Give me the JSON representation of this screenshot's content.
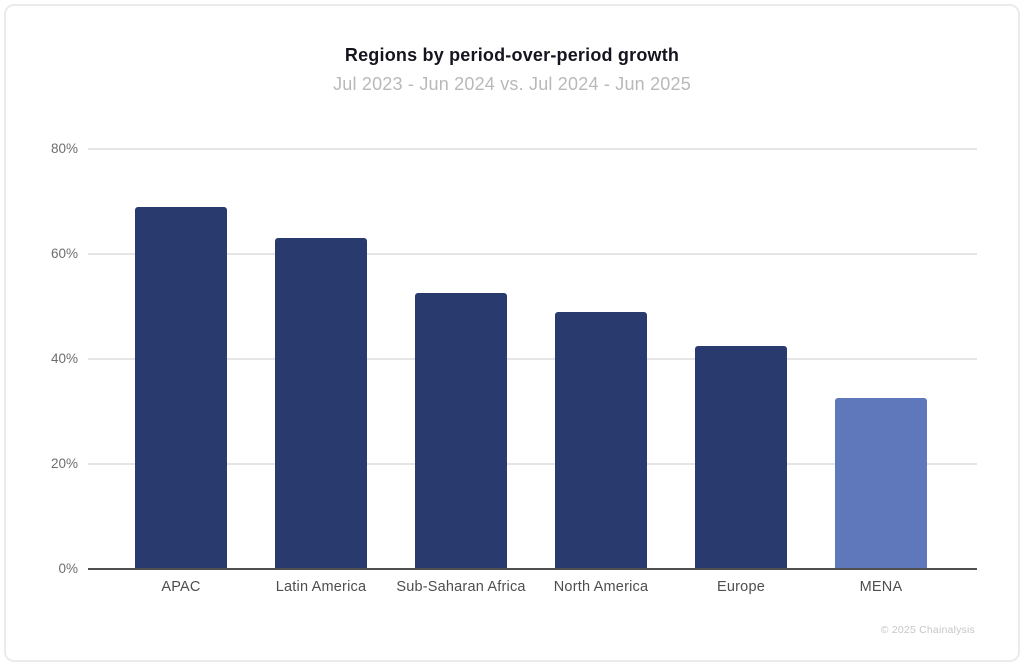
{
  "page": {
    "title": "Regions by period-over-period growth",
    "subtitle": "Jul 2023 - Jun 2024 vs. Jul 2024 - Jun 2025",
    "footer": "© 2025 Chainalysis"
  },
  "colors": {
    "bar_primary": "#293a6f",
    "bar_highlight": "#5e78bb",
    "gridline": "#e5e5e5",
    "axis_line": "#4f4f4f",
    "tick_label": "#6e6e6e",
    "category_label": "#4e4e4e",
    "title_text": "#15151f",
    "subtitle_text": "#b9b9b9",
    "footer_text": "#c6c6c6",
    "card_border": "#ebebeb"
  },
  "chart_data": {
    "type": "bar",
    "title": "Regions by period-over-period growth",
    "subtitle": "Jul 2023 - Jun 2024 vs. Jul 2024 - Jun 2025",
    "categories": [
      "APAC",
      "Latin America",
      "Sub-Saharan Africa",
      "North America",
      "Europe",
      "MENA"
    ],
    "values": [
      69,
      63,
      52.5,
      49,
      42.5,
      32.5
    ],
    "unit": "%",
    "ylim": [
      0,
      80
    ],
    "ytick_values": [
      0,
      20,
      40,
      60,
      80
    ],
    "ytick_labels": [
      "0%",
      "20%",
      "40%",
      "60%",
      "80%"
    ],
    "grid": true,
    "legend": null,
    "highlight_category": "MENA",
    "xlabel": "",
    "ylabel": ""
  }
}
